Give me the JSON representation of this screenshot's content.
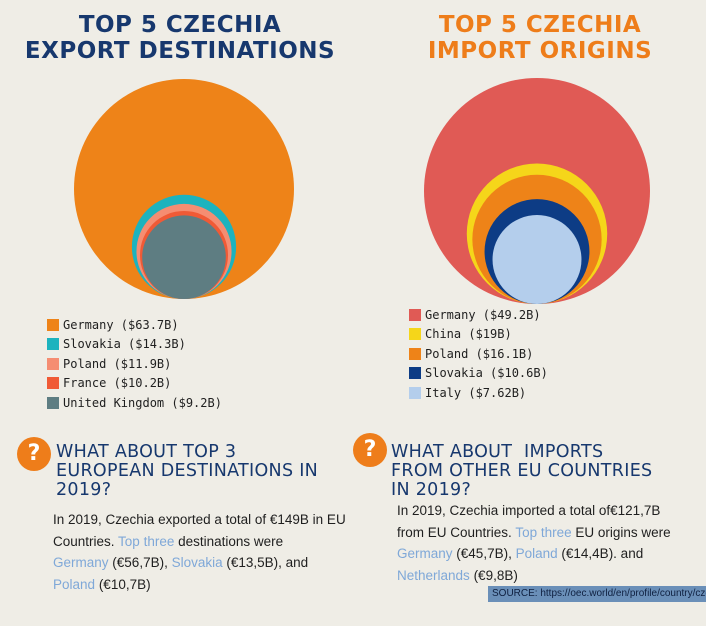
{
  "exports": {
    "title_lines": [
      "TOP 5 CZECHIA",
      "EXPORT DESTINATIONS"
    ],
    "legend": [
      "Germany ($63.7B)",
      "Slovakia ($14.3B)",
      "Poland ($11.9B)",
      "France ($10.2B)",
      "United Kingdom ($9.2B)"
    ]
  },
  "imports": {
    "title_lines": [
      "TOP 5 CZECHIA",
      "IMPORT ORIGINS"
    ],
    "legend": [
      "Germany ($49.2B)",
      "China ($19B)",
      "Poland ($16.1B)",
      "Slovakia ($10.6B)",
      "Italy ($7.62B)"
    ]
  },
  "chart_data": [
    {
      "type": "bubble",
      "title": "TOP 5 CZECHIA EXPORT DESTINATIONS",
      "unit": "USD billions",
      "categories": [
        "Germany",
        "Slovakia",
        "Poland",
        "France",
        "United Kingdom"
      ],
      "values": [
        63.7,
        14.3,
        11.9,
        10.2,
        9.2
      ],
      "colors": [
        "#ee8318",
        "#1cb3be",
        "#f58d72",
        "#f05a36",
        "#5e7d82"
      ],
      "legend_placement": "bottom-left"
    },
    {
      "type": "bubble",
      "title": "TOP 5 CZECHIA IMPORT ORIGINS",
      "unit": "USD billions",
      "categories": [
        "Germany",
        "China",
        "Poland",
        "Slovakia",
        "Italy"
      ],
      "values": [
        49.2,
        19,
        16.1,
        10.6,
        7.62
      ],
      "colors": [
        "#e05a55",
        "#f5d61a",
        "#ee8318",
        "#0d3c85",
        "#b4ceec"
      ],
      "legend_placement": "bottom-left"
    }
  ],
  "info": [
    {
      "heading_lines": [
        "WHAT ABOUT TOP 3",
        "EUROPEAN DESTINATIONS IN",
        "2019?"
      ],
      "body": {
        "l1": "In 2019, Czechia exported a total of €149B in EU",
        "l2a": "Countries.",
        "l2b": "Top three",
        "l2c": "destinations were",
        "l3a": "Germany",
        "l3b": "(€56,7B),",
        "l3c": "Slovakia",
        "l3d": "(€13,5B), and",
        "l4a": "Poland",
        "l4b": "(€10,7B)"
      }
    },
    {
      "heading_lines": [
        "WHAT ABOUT  IMPORTS",
        "FROM OTHER EU COUNTRIES",
        "IN 2019?"
      ],
      "body": {
        "l1": "In 2019, Czechia imported a total of€121,7B",
        "l2a": "from EU Countries.",
        "l2b": "Top three",
        "l2c": "EU origins were",
        "l3a": "Germany",
        "l3b": "(€45,7B),",
        "l3c": "Poland",
        "l3d": "(€14,4B). and",
        "l4a": "Netherlands",
        "l4b": "(€9,8B)"
      }
    }
  ],
  "source": "SOURCE: https://oec.world/en/profile/country/cze"
}
